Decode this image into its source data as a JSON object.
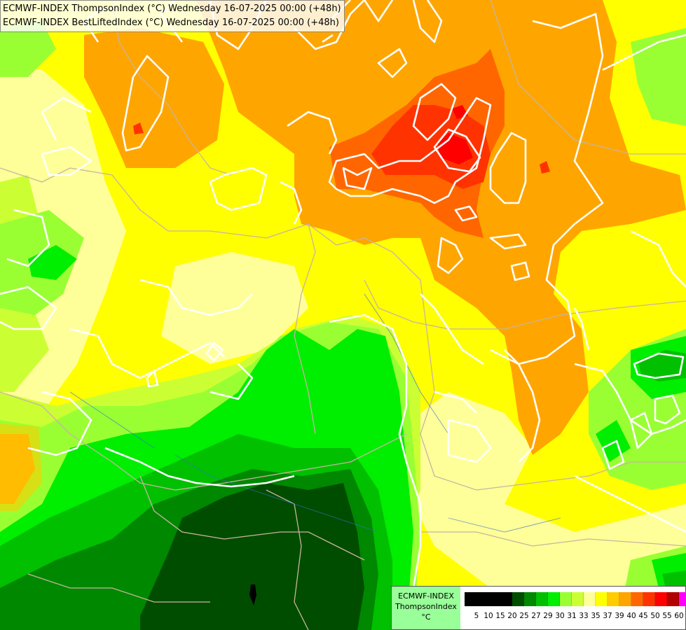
{
  "title": {
    "line1": "ECMWF-INDEX ThompsonIndex (°C) Wednesday 16-07-2025 00:00 (+48h)",
    "line2": "ECMWF-INDEX BestLiftedIndex (°C) Wednesday 16-07-2025 00:00 (+48h)"
  },
  "legend": {
    "model": "ECMWF-INDEX",
    "parameter": "ThompsonIndex",
    "unit": "°C",
    "ticks": [
      "5",
      "10",
      "15",
      "20",
      "25",
      "27",
      "29",
      "30",
      "31",
      "33",
      "35",
      "37",
      "39",
      "40",
      "45",
      "50",
      "55",
      "60"
    ],
    "colors": [
      "#000000",
      "#000000",
      "#000000",
      "#000000",
      "#004d00",
      "#008800",
      "#00c000",
      "#00ee00",
      "#99ff33",
      "#ccff33",
      "#ffff99",
      "#ffff00",
      "#ffcc00",
      "#ffa500",
      "#ff6600",
      "#ff3300",
      "#ff0000",
      "#b30000",
      "#ff00ff",
      "#cc00ff",
      "#9900ff",
      "#6600ff",
      "#0000ff"
    ]
  },
  "colors": {
    "dark_green": "#004d00",
    "mid_green": "#008800",
    "green": "#00ee00",
    "light_green": "#99ff33",
    "lime": "#ccff33",
    "pale_yellow": "#ffff99",
    "yellow": "#ffff00",
    "gold": "#ffcc00",
    "orange": "#ffa500",
    "dark_orange": "#ff6600",
    "red_orange": "#ff3300",
    "red": "#ff0000",
    "contour": "#ffffff",
    "border": "#c8b4a0"
  }
}
